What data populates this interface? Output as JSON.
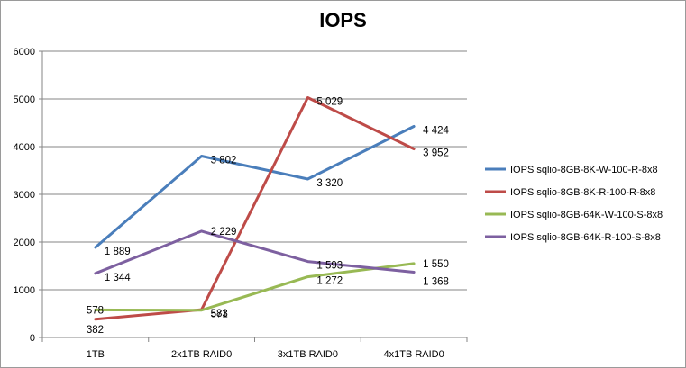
{
  "chart_data": {
    "type": "line",
    "title": "IOPS",
    "categories": [
      "1TB",
      "2x1TB RAID0",
      "3x1TB RAID0",
      "4x1TB RAID0"
    ],
    "ylim": [
      0,
      6000
    ],
    "yticks": [
      "0",
      "1000",
      "2000",
      "3000",
      "4000",
      "5000",
      "6000"
    ],
    "grid": true,
    "legend_position": "right",
    "series": [
      {
        "name": "IOPS sqlio-8GB-8K-W-100-R-8x8",
        "color": "#4a7ebb",
        "values": [
          1889,
          3802,
          3320,
          4424
        ],
        "labels": [
          "1 889",
          "3 802",
          "3 320",
          "4 424"
        ]
      },
      {
        "name": "IOPS  sqlio-8GB-8K-R-100-R-8x8",
        "color": "#be4b48",
        "values": [
          382,
          583,
          5029,
          3952
        ],
        "labels": [
          "382",
          "583",
          "5 029",
          "3 952"
        ]
      },
      {
        "name": "IOPS sqlio-8GB-64K-W-100-S-8x8",
        "color": "#98b954",
        "values": [
          578,
          571,
          1272,
          1550
        ],
        "labels": [
          "578",
          "571",
          "1 272",
          "1 550"
        ]
      },
      {
        "name": "IOPS sqlio-8GB-64K-R-100-S-8x8",
        "color": "#7d60a0",
        "values": [
          1344,
          2229,
          1593,
          1368
        ],
        "labels": [
          "1 344",
          "2 229",
          "1 593",
          "1 368"
        ]
      }
    ]
  }
}
